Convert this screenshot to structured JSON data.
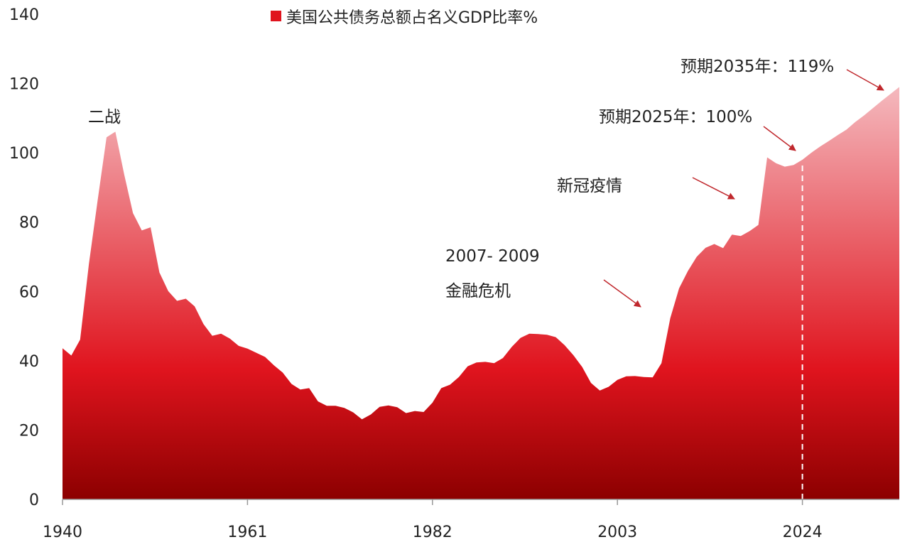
{
  "chart_data": {
    "type": "area",
    "title": "",
    "xlabel": "",
    "ylabel": "",
    "xlim": [
      1940,
      2035
    ],
    "ylim": [
      0,
      140
    ],
    "x_ticks": [
      "1940",
      "1961",
      "1982",
      "2003",
      "2024"
    ],
    "y_ticks": [
      "0",
      "20",
      "40",
      "60",
      "80",
      "100",
      "120",
      "140"
    ],
    "grid": false,
    "legend": {
      "position": "top-center",
      "label": "美国公共债务总额占名义GDP比率%"
    },
    "colors": {
      "top": "#f4b6bb",
      "mid": "#e0141e",
      "bottom": "#8c0000",
      "arrow": "#c0282d"
    },
    "projection_start": 2024,
    "series": [
      {
        "name": "美国公共债务总额占名义GDP比率%",
        "x": [
          1940,
          1941,
          1942,
          1943,
          1944,
          1945,
          1946,
          1947,
          1948,
          1949,
          1950,
          1951,
          1952,
          1953,
          1954,
          1955,
          1956,
          1957,
          1958,
          1959,
          1960,
          1961,
          1962,
          1963,
          1964,
          1965,
          1966,
          1967,
          1968,
          1969,
          1970,
          1971,
          1972,
          1973,
          1974,
          1975,
          1976,
          1977,
          1978,
          1979,
          1980,
          1981,
          1982,
          1983,
          1984,
          1985,
          1986,
          1987,
          1988,
          1989,
          1990,
          1991,
          1992,
          1993,
          1994,
          1995,
          1996,
          1997,
          1998,
          1999,
          2000,
          2001,
          2002,
          2003,
          2004,
          2005,
          2006,
          2007,
          2008,
          2009,
          2010,
          2011,
          2012,
          2013,
          2014,
          2015,
          2016,
          2017,
          2018,
          2019,
          2020,
          2021,
          2022,
          2023,
          2024,
          2025,
          2026,
          2027,
          2028,
          2029,
          2030,
          2031,
          2032,
          2033,
          2034,
          2035
        ],
        "values": [
          43.6,
          41.5,
          46.1,
          68.0,
          86.5,
          104.5,
          106.1,
          93.8,
          82.6,
          77.6,
          78.5,
          65.5,
          60.1,
          57.3,
          57.9,
          55.7,
          50.6,
          47.2,
          47.8,
          46.4,
          44.3,
          43.5,
          42.3,
          41.1,
          38.7,
          36.6,
          33.3,
          31.7,
          32.1,
          28.3,
          27.0,
          27.0,
          26.4,
          25.1,
          23.1,
          24.5,
          26.7,
          27.1,
          26.6,
          24.9,
          25.5,
          25.2,
          27.9,
          32.1,
          33.1,
          35.3,
          38.4,
          39.5,
          39.7,
          39.3,
          40.8,
          44.0,
          46.6,
          47.8,
          47.7,
          47.5,
          46.8,
          44.5,
          41.6,
          38.2,
          33.6,
          31.4,
          32.5,
          34.5,
          35.5,
          35.6,
          35.3,
          35.2,
          39.3,
          52.3,
          60.9,
          65.9,
          70.0,
          72.6,
          73.7,
          72.5,
          76.4,
          76.0,
          77.4,
          79.2,
          98.7,
          97.0,
          96.0,
          96.5,
          98.0,
          100.0,
          101.8,
          103.4,
          105.1,
          106.7,
          108.9,
          110.8,
          112.9,
          115.0,
          117.0,
          119.0
        ]
      }
    ],
    "annotations": [
      {
        "text": "二战"
      },
      {
        "text": "2007- 2009"
      },
      {
        "text": "金融危机"
      },
      {
        "text": "新冠疫情"
      },
      {
        "text": "预期2025年：100%"
      },
      {
        "text": "预期2035年：119%"
      }
    ]
  }
}
